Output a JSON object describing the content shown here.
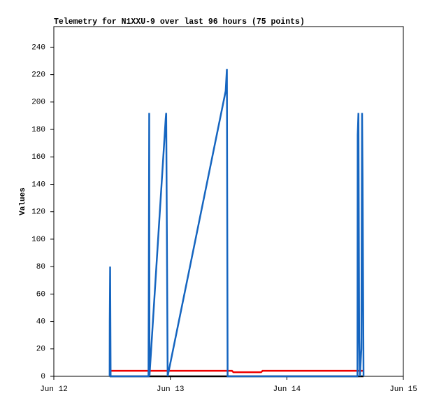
{
  "chart_data": {
    "type": "line",
    "title": "Telemetry for N1XXU-9 over last 96 hours (75 points)",
    "y_label": "Values",
    "xlim": [
      0,
      72
    ],
    "xticks": [
      {
        "value": 0,
        "label": "Jun 12"
      },
      {
        "value": 24,
        "label": "Jun 13"
      },
      {
        "value": 48,
        "label": "Jun 14"
      },
      {
        "value": 72,
        "label": "Jun 15"
      }
    ],
    "ylim": [
      0,
      255
    ],
    "yticks": [
      0,
      20,
      40,
      60,
      80,
      100,
      120,
      140,
      160,
      180,
      200,
      220,
      240
    ],
    "series": [
      {
        "color": "#000000",
        "x": [
          11.5,
          63.8
        ],
        "values": [
          0,
          0
        ]
      },
      {
        "color": "#ee0000",
        "x": [
          11.5,
          36.7,
          37,
          42.7,
          43,
          63.8
        ],
        "values": [
          4,
          4,
          3,
          3,
          4,
          4
        ]
      },
      {
        "color": "#1565c0",
        "x": [
          11.5,
          11.52,
          11.6,
          11.7,
          19.5,
          19.55,
          19.65,
          19.7,
          23.05,
          23.15,
          23.3,
          23.45,
          35.4,
          35.65,
          35.8,
          62.55,
          62.6,
          62.75,
          62.9,
          63.05,
          63.35,
          63.5,
          63.6,
          63.8
        ],
        "values": [
          0,
          40,
          80,
          0,
          0,
          48,
          192,
          0,
          188,
          192,
          96,
          0,
          208,
          224,
          0,
          0,
          176,
          192,
          28,
          0,
          20,
          192,
          145,
          0
        ]
      }
    ]
  }
}
